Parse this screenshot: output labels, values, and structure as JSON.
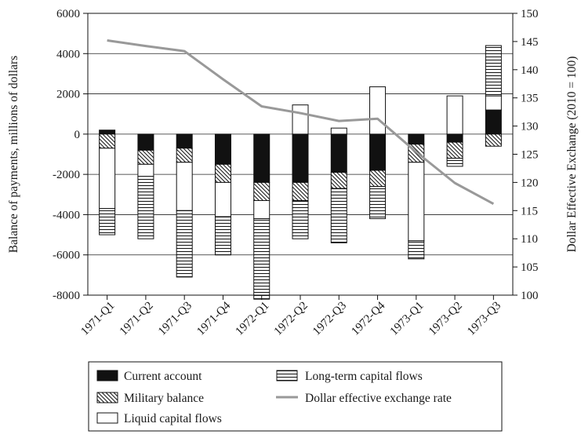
{
  "chart_data": {
    "type": "bar",
    "categories": [
      "1971-Q1",
      "1971-Q2",
      "1971-Q3",
      "1971-Q4",
      "1972-Q1",
      "1972-Q2",
      "1972-Q3",
      "1972-Q4",
      "1973-Q1",
      "1973-Q2",
      "1973-Q3"
    ],
    "ylabel": "Balance of payments, millions of dollars",
    "y2label": "Dollar Effective Exchange (2010 = 100)",
    "ylim": [
      -8000,
      6000
    ],
    "yticks": [
      6000,
      4000,
      2000,
      0,
      -2000,
      -4000,
      -6000,
      -8000
    ],
    "y2lim": [
      100,
      150
    ],
    "y2ticks": [
      150,
      145,
      140,
      135,
      130,
      125,
      120,
      115,
      110,
      105,
      100
    ],
    "grid": "horizontal",
    "legend_position": "bottom",
    "series": [
      {
        "name": "Current account",
        "kind": "bar",
        "fill": "black",
        "values": [
          200,
          -800,
          -700,
          -1500,
          -2400,
          -2400,
          -1900,
          -1800,
          -500,
          -400,
          1200
        ]
      },
      {
        "name": "Military balance",
        "kind": "bar",
        "fill": "diagonal-hatch",
        "values": [
          -700,
          -700,
          -700,
          -900,
          -900,
          -900,
          -800,
          -800,
          -900,
          -800,
          -600
        ]
      },
      {
        "name": "Liquid capital flows",
        "kind": "bar",
        "fill": "white",
        "values": [
          -3000,
          -600,
          -2400,
          -1700,
          -900,
          1450,
          300,
          2350,
          -3900,
          1900,
          700
        ]
      },
      {
        "name": "Long-term capital flows",
        "kind": "bar",
        "fill": "horizontal-hatch",
        "values": [
          -1300,
          -3100,
          -3300,
          -1900,
          -4000,
          -1900,
          -2700,
          -1600,
          -900,
          -400,
          2500
        ]
      },
      {
        "name": "Dollar effective exchange rate",
        "kind": "line",
        "axis": "right",
        "color": "#999999",
        "values": [
          145.2,
          144.2,
          143.3,
          138.3,
          133.5,
          132.3,
          130.9,
          131.3,
          125.4,
          119.9,
          116.2
        ]
      }
    ]
  }
}
